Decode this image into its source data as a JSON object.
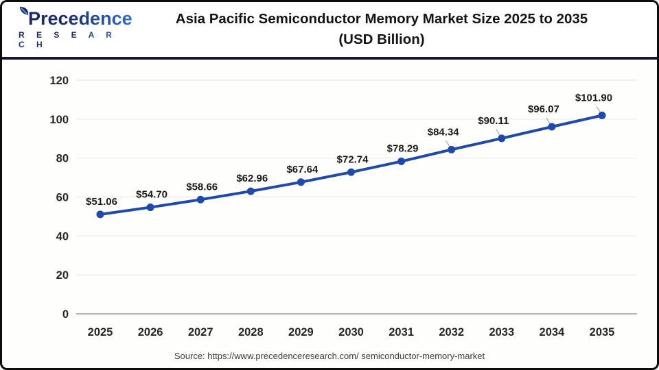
{
  "header": {
    "logo": {
      "name": "Precedence",
      "subtitle": "R E S E A R C H"
    },
    "title_line1": "Asia Pacific Semiconductor Memory Market Size 2025 to 2035",
    "title_line2": "(USD Billion)"
  },
  "footer": {
    "source": "Source: https://www.precedenceresearch.com/ semiconductor-memory-market"
  },
  "colors": {
    "line": "#1f4aad",
    "marker": "#1f4aad",
    "grid": "#e8e8e8",
    "axis_line": "#b3b3b3",
    "point_label": "#1a1a1a",
    "tick_label": "#262626",
    "leader": "#9a9a9a",
    "divider": "#15153f",
    "logo_navy": "#1b2a6b",
    "logo_blue": "#2f6fd2"
  },
  "chart_data": {
    "type": "line",
    "title": "Asia Pacific Semiconductor Memory Market Size 2025 to 2035 (USD Billion)",
    "series_name": "Asia Pacific Semiconductor Memory Market Size",
    "categories": [
      "2025",
      "2026",
      "2027",
      "2028",
      "2029",
      "2030",
      "2031",
      "2032",
      "2033",
      "2034",
      "2035"
    ],
    "values": [
      51.06,
      54.7,
      58.66,
      62.96,
      67.64,
      72.74,
      78.29,
      84.34,
      90.11,
      96.07,
      101.9
    ],
    "point_labels": [
      "$51.06",
      "$54.70",
      "$58.66",
      "$62.96",
      "$67.64",
      "$72.74",
      "$78.29",
      "$84.34",
      "$90.11",
      "$96.07",
      "$101.90"
    ],
    "yticks": [
      0,
      20,
      40,
      60,
      80,
      100,
      120
    ],
    "ylim": [
      0,
      120
    ],
    "xlabel": "",
    "ylabel": "",
    "grid": true,
    "legend": "none"
  }
}
